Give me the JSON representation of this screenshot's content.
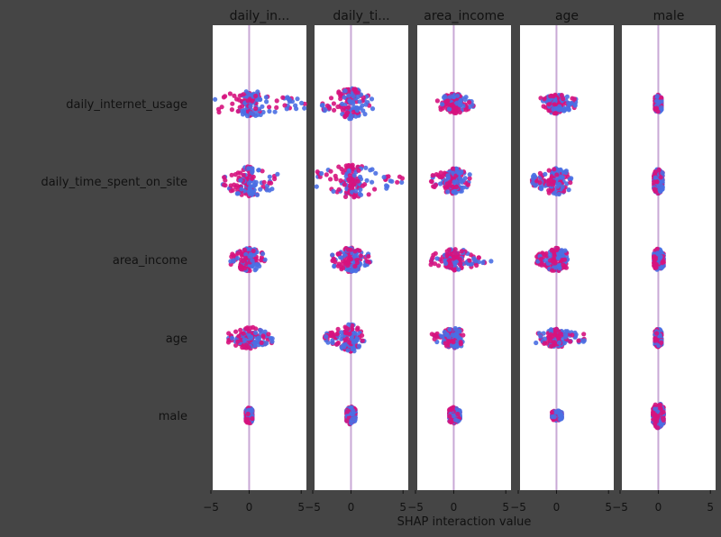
{
  "chart_data": {
    "type": "scatter",
    "subtype": "shap-interaction-beeswarm-matrix",
    "columns": [
      "daily_in...",
      "daily_ti...",
      "area_income",
      "age",
      "male"
    ],
    "rows": [
      "daily_internet_usage",
      "daily_time_spent_on_site",
      "area_income",
      "age",
      "male"
    ],
    "xlabel": "SHAP interaction value",
    "xlim": [
      -3.5,
      5.5
    ],
    "xticks": [
      -5,
      0,
      5
    ],
    "xtick_labels": [
      "−5",
      "0",
      "5"
    ],
    "colors": {
      "high": "#d6137e",
      "low": "#4a6fe3",
      "mid": "#8a52c0",
      "zero_line": "#c9a9d6",
      "background": "#454545"
    },
    "cells": [
      [
        {
          "min": -4.4,
          "max": 5.5,
          "width": 14,
          "split": -0.9
        },
        {
          "min": -2.8,
          "max": 2.1,
          "width": 17,
          "split": -0.2
        },
        {
          "min": -1.6,
          "max": 1.9,
          "width": 11,
          "split": 0.3
        },
        {
          "min": -1.6,
          "max": 1.9,
          "width": 11,
          "split": 0.2
        },
        {
          "min": -0.3,
          "max": 0.3,
          "width": 10,
          "split": 0.0
        }
      ],
      [
        {
          "min": -2.6,
          "max": 2.8,
          "width": 17,
          "split": 0.0
        },
        {
          "min": -3.4,
          "max": 5.5,
          "width": 18,
          "split": 0.9
        },
        {
          "min": -2.2,
          "max": 1.7,
          "width": 14,
          "split": 0.1
        },
        {
          "min": -2.4,
          "max": 1.5,
          "width": 15,
          "split": -0.2
        },
        {
          "min": -0.4,
          "max": 0.4,
          "width": 14,
          "split": 0.0
        }
      ],
      [
        {
          "min": -1.8,
          "max": 1.6,
          "width": 13,
          "split": 0.0
        },
        {
          "min": -1.8,
          "max": 1.9,
          "width": 14,
          "split": 0.0
        },
        {
          "min": -2.2,
          "max": 3.6,
          "width": 12,
          "split": 1.2
        },
        {
          "min": -1.9,
          "max": 1.1,
          "width": 13,
          "split": 0.0
        },
        {
          "min": -0.4,
          "max": 0.5,
          "width": 12,
          "split": 0.0
        }
      ],
      [
        {
          "min": -2.2,
          "max": 2.4,
          "width": 12,
          "split": 0.0
        },
        {
          "min": -2.6,
          "max": 1.3,
          "width": 15,
          "split": 0.0
        },
        {
          "min": -2.1,
          "max": 0.9,
          "width": 11,
          "split": 0.0
        },
        {
          "min": -2.0,
          "max": 2.7,
          "width": 10,
          "split": 0.5
        },
        {
          "min": -0.3,
          "max": 0.3,
          "width": 10,
          "split": 0.0
        }
      ],
      [
        {
          "min": -0.3,
          "max": 0.3,
          "width": 9,
          "split": 0.0
        },
        {
          "min": -0.4,
          "max": 0.4,
          "width": 10,
          "split": 0.0
        },
        {
          "min": -0.4,
          "max": 0.6,
          "width": 9,
          "split": 0.0
        },
        {
          "min": -0.4,
          "max": 0.5,
          "width": 6,
          "split": 0.0
        },
        {
          "min": -0.5,
          "max": 0.5,
          "width": 14,
          "split": 0.0
        }
      ]
    ]
  }
}
